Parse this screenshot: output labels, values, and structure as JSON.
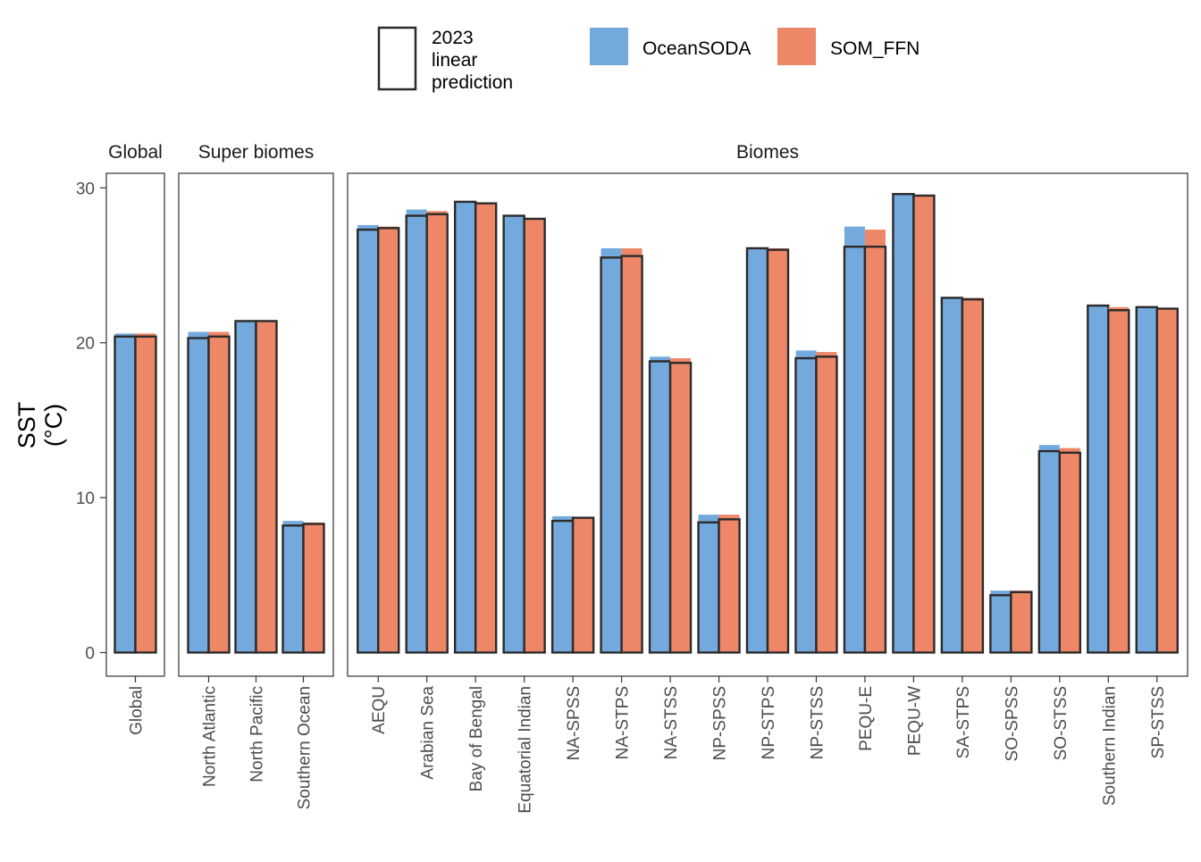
{
  "chart_data": {
    "type": "bar",
    "ylabel": [
      "SST",
      "(°C)"
    ],
    "ylim": [
      0,
      31
    ],
    "yticks": [
      0,
      10,
      20,
      30
    ],
    "grid": false,
    "legend_position": "top",
    "legend": {
      "outline_label": [
        "2023",
        "linear",
        "prediction"
      ],
      "series_names": [
        "OceanSODA",
        "SOM_FFN"
      ]
    },
    "colors": {
      "OceanSODA": "#74a9dd",
      "SOM_FFN": "#ee8767",
      "outline": "#2b2b2b"
    },
    "panels": [
      {
        "name": "Global",
        "categories": [
          "Global"
        ],
        "series": [
          {
            "name": "OceanSODA",
            "values": [
              20.6
            ],
            "prediction": [
              20.4
            ]
          },
          {
            "name": "SOM_FFN",
            "values": [
              20.6
            ],
            "prediction": [
              20.4
            ]
          }
        ]
      },
      {
        "name": "Super biomes",
        "categories": [
          "North Atlantic",
          "North Pacific",
          "Southern Ocean"
        ],
        "series": [
          {
            "name": "OceanSODA",
            "values": [
              20.7,
              21.4,
              8.5
            ],
            "prediction": [
              20.3,
              21.4,
              8.2
            ]
          },
          {
            "name": "SOM_FFN",
            "values": [
              20.7,
              21.4,
              8.4
            ],
            "prediction": [
              20.4,
              21.4,
              8.3
            ]
          }
        ]
      },
      {
        "name": "Biomes",
        "categories": [
          "AEQU",
          "Arabian Sea",
          "Bay of Bengal",
          "Equatorial Indian",
          "NA-SPSS",
          "NA-STPS",
          "NA-STSS",
          "NP-SPSS",
          "NP-STPS",
          "NP-STSS",
          "PEQU-E",
          "PEQU-W",
          "SA-STPS",
          "SO-SPSS",
          "SO-STSS",
          "Southern Indian",
          "SP-STSS"
        ],
        "series": [
          {
            "name": "OceanSODA",
            "values": [
              27.6,
              28.6,
              29.1,
              28.2,
              8.8,
              26.1,
              19.1,
              8.9,
              26.1,
              19.5,
              27.5,
              29.6,
              22.9,
              4.0,
              13.4,
              22.4,
              22.3
            ],
            "prediction": [
              27.3,
              28.2,
              29.1,
              28.2,
              8.5,
              25.5,
              18.8,
              8.4,
              26.1,
              19.0,
              26.2,
              29.6,
              22.9,
              3.7,
              13.0,
              22.4,
              22.3
            ]
          },
          {
            "name": "SOM_FFN",
            "values": [
              27.5,
              28.5,
              29.0,
              28.0,
              8.7,
              26.1,
              19.0,
              8.9,
              26.1,
              19.4,
              27.3,
              29.5,
              22.9,
              4.0,
              13.2,
              22.3,
              22.2
            ],
            "prediction": [
              27.4,
              28.3,
              29.0,
              28.0,
              8.7,
              25.6,
              18.7,
              8.6,
              26.0,
              19.1,
              26.2,
              29.5,
              22.8,
              3.9,
              12.9,
              22.1,
              22.2
            ]
          }
        ]
      }
    ]
  }
}
